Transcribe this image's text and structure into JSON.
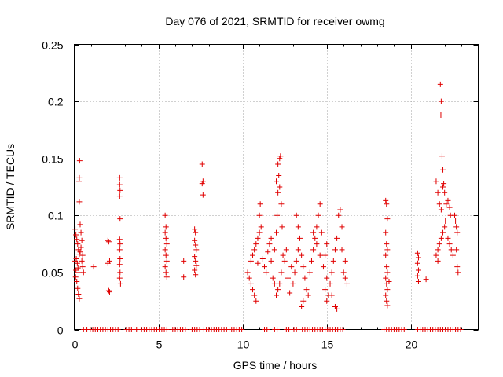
{
  "chart_data": {
    "type": "scatter",
    "title": "Day 076 of 2021, SRMTID for receiver owmg",
    "xlabel": "GPS time / hours",
    "ylabel": "SRMTID / TECUs",
    "xlim": [
      0,
      24
    ],
    "ylim": [
      0,
      0.25
    ],
    "xticks": [
      0,
      5,
      10,
      15,
      20
    ],
    "yticks": [
      0,
      0.05,
      0.1,
      0.15,
      0.2,
      0.25
    ],
    "xtick_labels": [
      "0",
      "5",
      "10",
      "15",
      "20"
    ],
    "ytick_labels": [
      "0",
      "0.05",
      "0.1",
      "0.15",
      "0.2",
      "0.25"
    ],
    "grid": true,
    "marker": "+",
    "color": "#e00000",
    "series": [
      {
        "name": "SRMTID",
        "points": [
          [
            0.05,
            0.088
          ],
          [
            0.1,
            0.083
          ],
          [
            0.15,
            0.079
          ],
          [
            0.2,
            0.075
          ],
          [
            0.25,
            0.07
          ],
          [
            0.3,
            0.066
          ],
          [
            0.12,
            0.062
          ],
          [
            0.18,
            0.058
          ],
          [
            0.22,
            0.054
          ],
          [
            0.28,
            0.05
          ],
          [
            0.08,
            0.046
          ],
          [
            0.15,
            0.042
          ],
          [
            0.2,
            0.036
          ],
          [
            0.25,
            0.031
          ],
          [
            0.3,
            0.027
          ],
          [
            0.32,
            0.148
          ],
          [
            0.3,
            0.133
          ],
          [
            0.28,
            0.13
          ],
          [
            0.3,
            0.112
          ],
          [
            0.35,
            0.092
          ],
          [
            0.4,
            0.085
          ],
          [
            0.45,
            0.078
          ],
          [
            0.4,
            0.072
          ],
          [
            0.5,
            0.065
          ],
          [
            0.45,
            0.06
          ],
          [
            0.5,
            0.055
          ],
          [
            0.55,
            0.05
          ],
          [
            0.05,
            0.06
          ],
          [
            0.1,
            0.052
          ],
          [
            0.35,
            0.068
          ],
          [
            1.15,
            0.055
          ],
          [
            2.0,
            0.078
          ],
          [
            2.05,
            0.077
          ],
          [
            2.1,
            0.06
          ],
          [
            2.0,
            0.058
          ],
          [
            2.05,
            0.034
          ],
          [
            2.1,
            0.033
          ],
          [
            2.7,
            0.133
          ],
          [
            2.7,
            0.127
          ],
          [
            2.72,
            0.122
          ],
          [
            2.7,
            0.117
          ],
          [
            2.72,
            0.097
          ],
          [
            2.7,
            0.079
          ],
          [
            2.72,
            0.075
          ],
          [
            2.7,
            0.07
          ],
          [
            2.72,
            0.062
          ],
          [
            2.7,
            0.057
          ],
          [
            2.72,
            0.05
          ],
          [
            2.7,
            0.045
          ],
          [
            2.75,
            0.04
          ],
          [
            5.4,
            0.1
          ],
          [
            5.45,
            0.09
          ],
          [
            5.4,
            0.085
          ],
          [
            5.45,
            0.08
          ],
          [
            5.5,
            0.075
          ],
          [
            5.4,
            0.07
          ],
          [
            5.45,
            0.065
          ],
          [
            5.5,
            0.06
          ],
          [
            5.4,
            0.055
          ],
          [
            5.45,
            0.05
          ],
          [
            5.5,
            0.046
          ],
          [
            6.5,
            0.06
          ],
          [
            6.5,
            0.046
          ],
          [
            7.15,
            0.088
          ],
          [
            7.2,
            0.085
          ],
          [
            7.15,
            0.078
          ],
          [
            7.2,
            0.074
          ],
          [
            7.25,
            0.07
          ],
          [
            7.15,
            0.064
          ],
          [
            7.2,
            0.06
          ],
          [
            7.25,
            0.056
          ],
          [
            7.15,
            0.052
          ],
          [
            7.2,
            0.048
          ],
          [
            7.6,
            0.145
          ],
          [
            7.65,
            0.13
          ],
          [
            7.6,
            0.128
          ],
          [
            7.65,
            0.118
          ],
          [
            10.3,
            0.05
          ],
          [
            10.4,
            0.045
          ],
          [
            10.5,
            0.04
          ],
          [
            10.6,
            0.035
          ],
          [
            10.7,
            0.03
          ],
          [
            10.8,
            0.025
          ],
          [
            10.5,
            0.06
          ],
          [
            10.6,
            0.065
          ],
          [
            10.7,
            0.07
          ],
          [
            10.8,
            0.075
          ],
          [
            10.9,
            0.08
          ],
          [
            11.0,
            0.085
          ],
          [
            11.1,
            0.09
          ],
          [
            11.0,
            0.1
          ],
          [
            11.05,
            0.11
          ],
          [
            10.9,
            0.058
          ],
          [
            11.2,
            0.062
          ],
          [
            11.3,
            0.055
          ],
          [
            11.4,
            0.05
          ],
          [
            11.5,
            0.068
          ],
          [
            11.6,
            0.075
          ],
          [
            11.7,
            0.08
          ],
          [
            11.8,
            0.045
          ],
          [
            11.9,
            0.04
          ],
          [
            11.7,
            0.06
          ],
          [
            11.9,
            0.07
          ],
          [
            12.0,
            0.085
          ],
          [
            12.05,
            0.1
          ],
          [
            12.1,
            0.12
          ],
          [
            12.15,
            0.135
          ],
          [
            12.2,
            0.15
          ],
          [
            12.25,
            0.152
          ],
          [
            12.0,
            0.13
          ],
          [
            12.1,
            0.145
          ],
          [
            12.2,
            0.125
          ],
          [
            12.3,
            0.11
          ],
          [
            12.35,
            0.09
          ],
          [
            12.4,
            0.065
          ],
          [
            12.3,
            0.05
          ],
          [
            12.2,
            0.04
          ],
          [
            12.1,
            0.035
          ],
          [
            12.0,
            0.03
          ],
          [
            12.5,
            0.06
          ],
          [
            12.6,
            0.07
          ],
          [
            12.7,
            0.045
          ],
          [
            12.8,
            0.032
          ],
          [
            12.9,
            0.055
          ],
          [
            13.0,
            0.04
          ],
          [
            13.1,
            0.05
          ],
          [
            13.2,
            0.06
          ],
          [
            13.3,
            0.07
          ],
          [
            13.4,
            0.08
          ],
          [
            13.2,
            0.1
          ],
          [
            13.3,
            0.09
          ],
          [
            13.5,
            0.065
          ],
          [
            13.6,
            0.055
          ],
          [
            13.7,
            0.045
          ],
          [
            13.8,
            0.035
          ],
          [
            13.9,
            0.03
          ],
          [
            13.5,
            0.02
          ],
          [
            13.6,
            0.025
          ],
          [
            14.0,
            0.05
          ],
          [
            14.1,
            0.06
          ],
          [
            14.2,
            0.07
          ],
          [
            14.3,
            0.08
          ],
          [
            14.4,
            0.09
          ],
          [
            14.5,
            0.1
          ],
          [
            14.6,
            0.11
          ],
          [
            14.2,
            0.085
          ],
          [
            14.4,
            0.075
          ],
          [
            14.6,
            0.065
          ],
          [
            14.8,
            0.055
          ],
          [
            15.0,
            0.045
          ],
          [
            14.9,
            0.035
          ],
          [
            15.0,
            0.025
          ],
          [
            15.1,
            0.03
          ],
          [
            15.2,
            0.04
          ],
          [
            15.3,
            0.05
          ],
          [
            15.4,
            0.06
          ],
          [
            15.5,
            0.07
          ],
          [
            15.6,
            0.08
          ],
          [
            15.7,
            0.1
          ],
          [
            15.8,
            0.105
          ],
          [
            15.9,
            0.09
          ],
          [
            15.9,
            0.07
          ],
          [
            16.0,
            0.05
          ],
          [
            16.1,
            0.045
          ],
          [
            16.2,
            0.04
          ],
          [
            16.1,
            0.06
          ],
          [
            15.5,
            0.02
          ],
          [
            15.6,
            0.018
          ],
          [
            15.3,
            0.03
          ],
          [
            14.7,
            0.085
          ],
          [
            14.9,
            0.065
          ],
          [
            15.0,
            0.075
          ],
          [
            18.5,
            0.113
          ],
          [
            18.55,
            0.11
          ],
          [
            18.6,
            0.097
          ],
          [
            18.5,
            0.085
          ],
          [
            18.55,
            0.075
          ],
          [
            18.6,
            0.07
          ],
          [
            18.5,
            0.065
          ],
          [
            18.55,
            0.055
          ],
          [
            18.6,
            0.05
          ],
          [
            18.5,
            0.045
          ],
          [
            18.55,
            0.04
          ],
          [
            18.6,
            0.035
          ],
          [
            18.5,
            0.03
          ],
          [
            18.55,
            0.025
          ],
          [
            18.6,
            0.021
          ],
          [
            18.7,
            0.042
          ],
          [
            20.4,
            0.067
          ],
          [
            20.45,
            0.063
          ],
          [
            20.4,
            0.058
          ],
          [
            20.45,
            0.052
          ],
          [
            20.4,
            0.047
          ],
          [
            20.45,
            0.042
          ],
          [
            20.9,
            0.044
          ],
          [
            21.5,
            0.13
          ],
          [
            21.6,
            0.12
          ],
          [
            21.7,
            0.11
          ],
          [
            21.8,
            0.105
          ],
          [
            21.75,
            0.215
          ],
          [
            21.8,
            0.2
          ],
          [
            21.78,
            0.188
          ],
          [
            21.85,
            0.152
          ],
          [
            21.9,
            0.14
          ],
          [
            21.95,
            0.128
          ],
          [
            21.9,
            0.125
          ],
          [
            22.0,
            0.12
          ],
          [
            22.1,
            0.11
          ],
          [
            22.05,
            0.095
          ],
          [
            22.0,
            0.09
          ],
          [
            21.9,
            0.085
          ],
          [
            21.8,
            0.08
          ],
          [
            21.7,
            0.075
          ],
          [
            21.6,
            0.07
          ],
          [
            21.5,
            0.065
          ],
          [
            21.6,
            0.06
          ],
          [
            22.2,
            0.113
          ],
          [
            22.3,
            0.107
          ],
          [
            22.35,
            0.1
          ],
          [
            22.2,
            0.08
          ],
          [
            22.3,
            0.075
          ],
          [
            22.4,
            0.07
          ],
          [
            22.5,
            0.065
          ],
          [
            22.6,
            0.1
          ],
          [
            22.65,
            0.095
          ],
          [
            22.7,
            0.09
          ],
          [
            22.75,
            0.085
          ],
          [
            22.7,
            0.07
          ],
          [
            22.75,
            0.055
          ],
          [
            22.8,
            0.05
          ]
        ]
      }
    ],
    "zero_series_x": [
      0.55,
      0.75,
      0.95,
      1.1,
      1.25,
      1.4,
      1.55,
      1.7,
      1.85,
      2.0,
      2.15,
      2.3,
      2.45,
      2.6,
      3.1,
      3.25,
      3.4,
      3.55,
      3.7,
      4.0,
      4.15,
      4.3,
      4.45,
      4.6,
      4.75,
      4.9,
      5.05,
      5.2,
      5.35,
      5.5,
      5.85,
      6.0,
      6.15,
      6.3,
      6.45,
      6.6,
      7.0,
      7.15,
      7.3,
      7.45,
      7.7,
      7.85,
      8.0,
      8.15,
      8.3,
      8.45,
      8.6,
      8.75,
      8.9,
      9.05,
      9.2,
      9.35,
      9.5,
      9.65,
      9.8,
      9.95,
      11.3,
      11.45,
      11.9,
      12.05,
      12.6,
      12.75,
      13.05,
      13.2,
      13.55,
      13.7,
      13.85,
      14.0,
      14.15,
      14.3,
      14.45,
      14.6,
      14.75,
      14.9,
      15.05,
      15.2,
      15.35,
      15.5,
      15.65,
      15.8,
      15.95,
      18.4,
      18.55,
      18.7,
      18.85,
      19.0,
      19.15,
      19.3,
      19.45,
      19.6,
      20.4,
      20.55,
      20.7,
      20.85,
      21.0,
      21.15,
      21.3,
      21.45,
      21.6,
      21.75,
      21.9,
      22.05,
      22.2,
      22.35,
      22.5,
      22.65,
      22.8,
      22.95
    ]
  }
}
